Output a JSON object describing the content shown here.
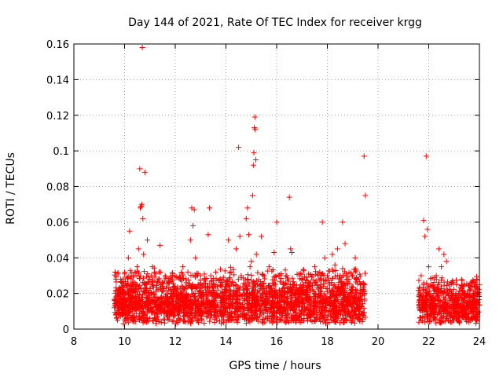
{
  "chart_data": {
    "type": "scatter",
    "title": "Day 144 of 2021, Rate Of TEC Index for receiver krgg",
    "xlabel": "GPS time / hours",
    "ylabel": "ROTI / TECUs",
    "xlim": [
      8,
      24
    ],
    "ylim": [
      0,
      0.16
    ],
    "xticks": [
      "8",
      "10",
      "12",
      "14",
      "16",
      "18",
      "20",
      "22",
      "24"
    ],
    "yticks": [
      "0",
      "0.02",
      "0.04",
      "0.06",
      "0.08",
      "0.1",
      "0.12",
      "0.14",
      "0.16"
    ],
    "grid": true,
    "marker": "+",
    "color": "#ff0000",
    "series": [
      {
        "points": [
          [
            9.6,
            0.012
          ],
          [
            9.65,
            0.018
          ],
          [
            9.7,
            0.009
          ],
          [
            9.75,
            0.022
          ],
          [
            9.8,
            0.015
          ],
          [
            9.85,
            0.028
          ],
          [
            9.9,
            0.011
          ],
          [
            9.95,
            0.02
          ],
          [
            10.0,
            0.031
          ],
          [
            10.05,
            0.014
          ],
          [
            10.1,
            0.025
          ],
          [
            10.15,
            0.04
          ],
          [
            10.2,
            0.055
          ],
          [
            10.25,
            0.019
          ],
          [
            10.3,
            0.012
          ],
          [
            10.35,
            0.03
          ],
          [
            10.4,
            0.021
          ],
          [
            10.45,
            0.016
          ],
          [
            10.5,
            0.035
          ],
          [
            10.55,
            0.045
          ],
          [
            10.6,
            0.09
          ],
          [
            10.62,
            0.068
          ],
          [
            10.65,
            0.069
          ],
          [
            10.68,
            0.07
          ],
          [
            10.7,
            0.158
          ],
          [
            10.72,
            0.062
          ],
          [
            10.75,
            0.042
          ],
          [
            10.8,
            0.088
          ],
          [
            10.85,
            0.025
          ],
          [
            10.9,
            0.05
          ],
          [
            10.95,
            0.013
          ],
          [
            11.0,
            0.028
          ],
          [
            11.1,
            0.035
          ],
          [
            11.2,
            0.018
          ],
          [
            11.3,
            0.012
          ],
          [
            11.4,
            0.047
          ],
          [
            11.5,
            0.024
          ],
          [
            11.6,
            0.03
          ],
          [
            11.7,
            0.015
          ],
          [
            11.8,
            0.01
          ],
          [
            11.9,
            0.014
          ],
          [
            12.0,
            0.011
          ],
          [
            12.1,
            0.02
          ],
          [
            12.2,
            0.028
          ],
          [
            12.3,
            0.035
          ],
          [
            12.4,
            0.018
          ],
          [
            12.5,
            0.032
          ],
          [
            12.6,
            0.05
          ],
          [
            12.65,
            0.068
          ],
          [
            12.7,
            0.058
          ],
          [
            12.75,
            0.067
          ],
          [
            12.8,
            0.04
          ],
          [
            12.9,
            0.025
          ],
          [
            13.0,
            0.03
          ],
          [
            13.1,
            0.015
          ],
          [
            13.2,
            0.022
          ],
          [
            13.3,
            0.053
          ],
          [
            13.35,
            0.068
          ],
          [
            13.4,
            0.03
          ],
          [
            13.5,
            0.016
          ],
          [
            13.6,
            0.024
          ],
          [
            13.7,
            0.012
          ],
          [
            13.8,
            0.02
          ],
          [
            13.9,
            0.029
          ],
          [
            14.0,
            0.025
          ],
          [
            14.1,
            0.05
          ],
          [
            14.2,
            0.032
          ],
          [
            14.3,
            0.018
          ],
          [
            14.4,
            0.045
          ],
          [
            14.5,
            0.102
          ],
          [
            14.55,
            0.052
          ],
          [
            14.6,
            0.03
          ],
          [
            14.7,
            0.022
          ],
          [
            14.8,
            0.062
          ],
          [
            14.85,
            0.068
          ],
          [
            14.9,
            0.053
          ],
          [
            14.95,
            0.035
          ],
          [
            15.0,
            0.038
          ],
          [
            15.05,
            0.075
          ],
          [
            15.08,
            0.092
          ],
          [
            15.1,
            0.099
          ],
          [
            15.12,
            0.113
          ],
          [
            15.14,
            0.119
          ],
          [
            15.16,
            0.112
          ],
          [
            15.18,
            0.095
          ],
          [
            15.2,
            0.042
          ],
          [
            15.3,
            0.025
          ],
          [
            15.4,
            0.052
          ],
          [
            15.5,
            0.03
          ],
          [
            15.6,
            0.02
          ],
          [
            15.7,
            0.035
          ],
          [
            15.8,
            0.015
          ],
          [
            15.9,
            0.043
          ],
          [
            16.0,
            0.06
          ],
          [
            16.1,
            0.022
          ],
          [
            16.2,
            0.018
          ],
          [
            16.3,
            0.012
          ],
          [
            16.4,
            0.03
          ],
          [
            16.5,
            0.074
          ],
          [
            16.55,
            0.045
          ],
          [
            16.6,
            0.043
          ],
          [
            16.7,
            0.025
          ],
          [
            16.8,
            0.015
          ],
          [
            16.9,
            0.02
          ],
          [
            17.0,
            0.028
          ],
          [
            17.1,
            0.012
          ],
          [
            17.2,
            0.022
          ],
          [
            17.3,
            0.018
          ],
          [
            17.4,
            0.03
          ],
          [
            17.5,
            0.035
          ],
          [
            17.6,
            0.025
          ],
          [
            17.7,
            0.032
          ],
          [
            17.8,
            0.06
          ],
          [
            17.9,
            0.04
          ],
          [
            18.0,
            0.03
          ],
          [
            18.1,
            0.022
          ],
          [
            18.2,
            0.042
          ],
          [
            18.3,
            0.036
          ],
          [
            18.4,
            0.045
          ],
          [
            18.5,
            0.03
          ],
          [
            18.6,
            0.06
          ],
          [
            18.7,
            0.048
          ],
          [
            18.8,
            0.028
          ],
          [
            18.9,
            0.02
          ],
          [
            19.0,
            0.03
          ],
          [
            19.1,
            0.04
          ],
          [
            19.2,
            0.015
          ],
          [
            19.3,
            0.025
          ],
          [
            19.4,
            0.02
          ],
          [
            19.45,
            0.097
          ],
          [
            19.5,
            0.075
          ],
          [
            21.6,
            0.015
          ],
          [
            21.7,
            0.03
          ],
          [
            21.8,
            0.061
          ],
          [
            21.85,
            0.052
          ],
          [
            21.9,
            0.097
          ],
          [
            21.95,
            0.056
          ],
          [
            22.0,
            0.035
          ],
          [
            22.1,
            0.025
          ],
          [
            22.2,
            0.02
          ],
          [
            22.3,
            0.03
          ],
          [
            22.4,
            0.045
          ],
          [
            22.5,
            0.035
          ],
          [
            22.6,
            0.042
          ],
          [
            22.7,
            0.038
          ],
          [
            22.8,
            0.025
          ],
          [
            22.9,
            0.02
          ],
          [
            23.0,
            0.015
          ],
          [
            23.1,
            0.025
          ],
          [
            23.2,
            0.018
          ],
          [
            23.3,
            0.012
          ],
          [
            23.4,
            0.02
          ],
          [
            23.5,
            0.015
          ],
          [
            23.6,
            0.022
          ],
          [
            23.7,
            0.01
          ],
          [
            23.8,
            0.016
          ],
          [
            23.9,
            0.028
          ],
          [
            24.0,
            0.025
          ]
        ]
      }
    ],
    "dense_segments": [
      {
        "x": [
          9.6,
          19.5
        ],
        "ymin": 0.003,
        "ymax": 0.035
      },
      {
        "x": [
          21.6,
          24.0
        ],
        "ymin": 0.003,
        "ymax": 0.03
      }
    ]
  }
}
